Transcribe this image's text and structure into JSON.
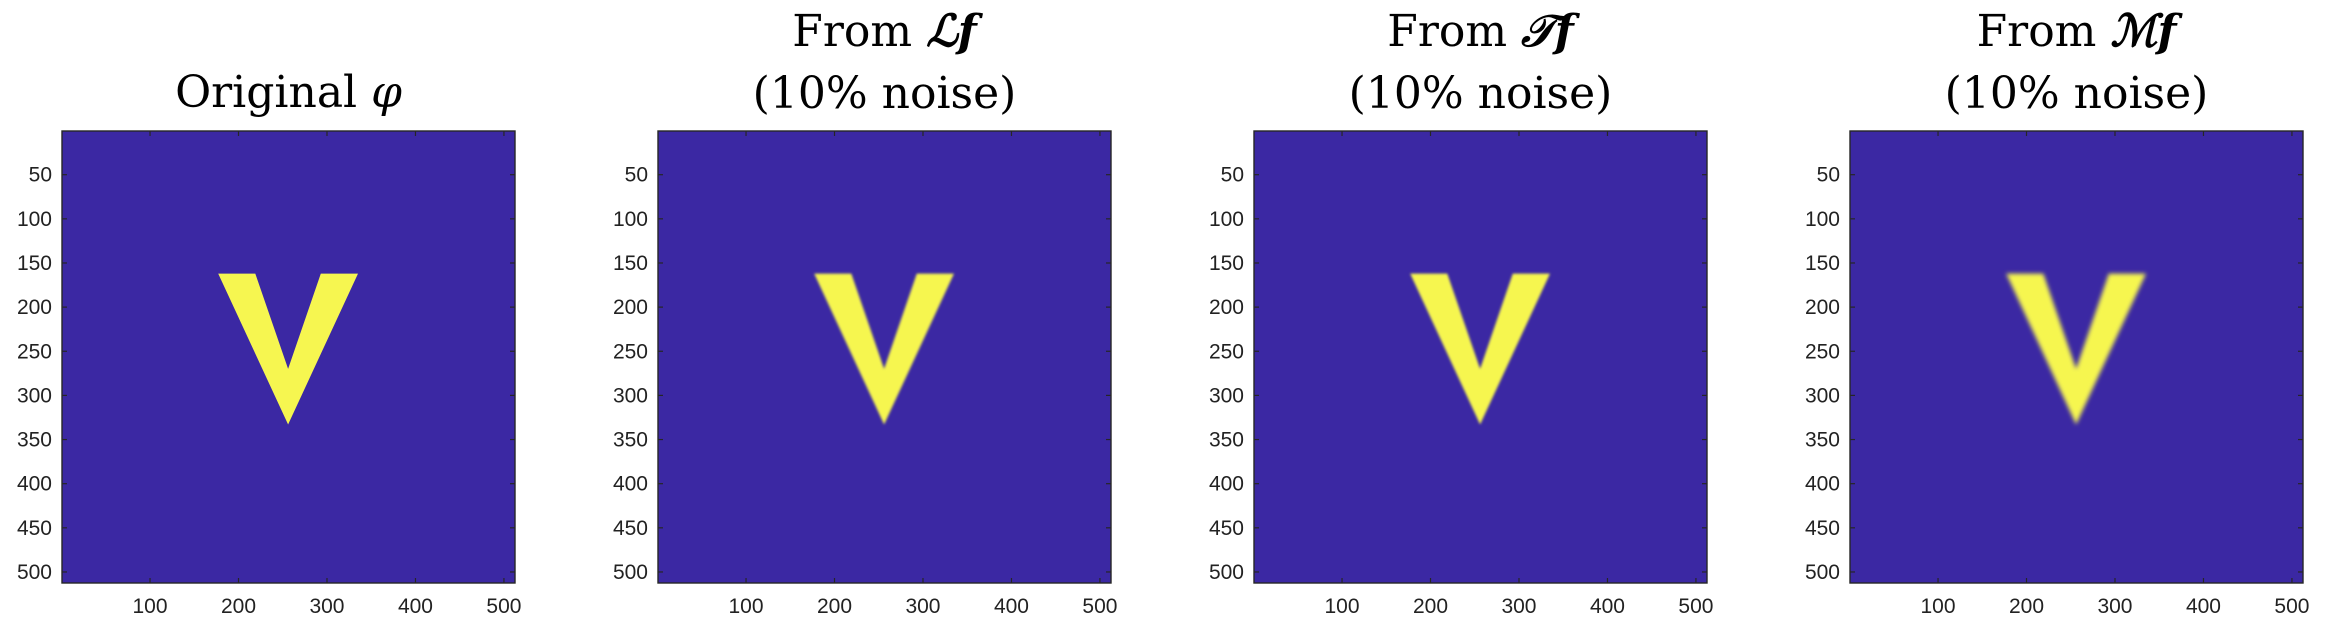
{
  "figure": {
    "panels": [
      {
        "title_lines": [
          [
            "Original ",
            "φ"
          ]
        ],
        "image": "phi"
      },
      {
        "title_lines": [
          [
            "From ",
            "ℒf"
          ],
          [
            "(10% noise)"
          ]
        ],
        "image": "Lf"
      },
      {
        "title_lines": [
          [
            "From ",
            "𝒯f"
          ],
          [
            "(10% noise)"
          ]
        ],
        "image": "Tf"
      },
      {
        "title_lines": [
          [
            "From ",
            "ℳf"
          ],
          [
            "(10% noise)"
          ]
        ],
        "image": "Mf"
      }
    ],
    "colors": {
      "background": "#3b28a3",
      "shape": "#f6f650",
      "axis": "#262626"
    }
  },
  "chart_data": [
    {
      "type": "heatmap",
      "title": "Original φ",
      "x_ticks": [
        100,
        200,
        300,
        400,
        500
      ],
      "y_ticks": [
        50,
        100,
        150,
        200,
        250,
        300,
        350,
        400,
        450,
        500
      ],
      "xlim": [
        0.5,
        512.5
      ],
      "ylim": [
        0.5,
        512.5
      ],
      "y_direction": "reverse",
      "shape": "V",
      "shape_vertices": [
        [
          177,
          162
        ],
        [
          219,
          162
        ],
        [
          256,
          270
        ],
        [
          293,
          162
        ],
        [
          335,
          162
        ],
        [
          256,
          333
        ]
      ],
      "edge": "sharp"
    },
    {
      "type": "heatmap",
      "title": "From ℒf (10% noise)",
      "x_ticks": [
        100,
        200,
        300,
        400,
        500
      ],
      "y_ticks": [
        50,
        100,
        150,
        200,
        250,
        300,
        350,
        400,
        450,
        500
      ],
      "xlim": [
        0.5,
        512.5
      ],
      "ylim": [
        0.5,
        512.5
      ],
      "y_direction": "reverse",
      "shape": "V",
      "shape_vertices": [
        [
          177,
          162
        ],
        [
          219,
          162
        ],
        [
          256,
          270
        ],
        [
          293,
          162
        ],
        [
          335,
          162
        ],
        [
          256,
          333
        ]
      ],
      "edge": "slightly blurred"
    },
    {
      "type": "heatmap",
      "title": "From 𝒯f (10% noise)",
      "x_ticks": [
        100,
        200,
        300,
        400,
        500
      ],
      "y_ticks": [
        50,
        100,
        150,
        200,
        250,
        300,
        350,
        400,
        450,
        500
      ],
      "xlim": [
        0.5,
        512.5
      ],
      "ylim": [
        0.5,
        512.5
      ],
      "y_direction": "reverse",
      "shape": "V",
      "shape_vertices": [
        [
          177,
          162
        ],
        [
          219,
          162
        ],
        [
          256,
          270
        ],
        [
          293,
          162
        ],
        [
          335,
          162
        ],
        [
          256,
          333
        ]
      ],
      "edge": "slightly blurred"
    },
    {
      "type": "heatmap",
      "title": "From ℳf (10% noise)",
      "x_ticks": [
        100,
        200,
        300,
        400,
        500
      ],
      "y_ticks": [
        50,
        100,
        150,
        200,
        250,
        300,
        350,
        400,
        450,
        500
      ],
      "xlim": [
        0.5,
        512.5
      ],
      "ylim": [
        0.5,
        512.5
      ],
      "y_direction": "reverse",
      "shape": "V",
      "shape_vertices": [
        [
          177,
          162
        ],
        [
          219,
          162
        ],
        [
          256,
          270
        ],
        [
          293,
          162
        ],
        [
          335,
          162
        ],
        [
          256,
          333
        ]
      ],
      "edge": "blurred"
    }
  ]
}
